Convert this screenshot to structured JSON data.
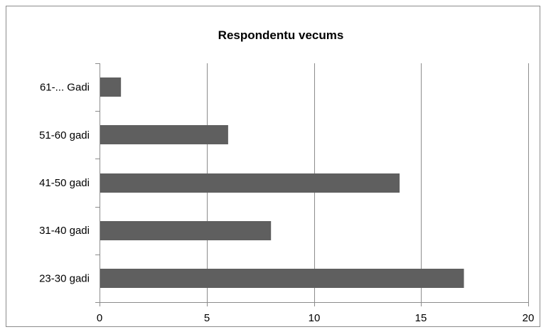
{
  "chart_data": {
    "type": "bar",
    "orientation": "horizontal",
    "title": "Respondentu vecums",
    "xlabel": "",
    "ylabel": "",
    "categories": [
      "23-30 gadi",
      "31-40 gadi",
      "41-50 gadi",
      "51-60 gadi",
      "61-... Gadi"
    ],
    "values": [
      17,
      8,
      14,
      6,
      1
    ],
    "xlim": [
      0,
      20
    ],
    "xticks": [
      0,
      5,
      10,
      15,
      20
    ],
    "xtick_labels": [
      "0",
      "5",
      "10",
      "15",
      "20"
    ],
    "grid": "vertical",
    "legend": "none",
    "bar_color": "#5f5f5f"
  }
}
